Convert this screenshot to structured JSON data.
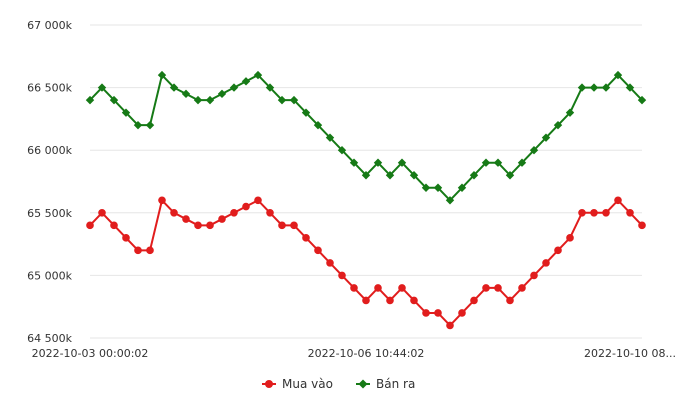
{
  "chart_data": {
    "type": "line",
    "title": "",
    "xlabel": "",
    "ylabel": "",
    "ylim": [
      64500,
      67000
    ],
    "yticks": [
      64500,
      65000,
      65500,
      66000,
      66500,
      67000
    ],
    "ytick_labels": [
      "64 500k",
      "65 000k",
      "65 500k",
      "66 000k",
      "66 500k",
      "67 000k"
    ],
    "xtick_labels": [
      {
        "index": 0,
        "label": "2022-10-03 00:00:02"
      },
      {
        "index": 23,
        "label": "2022-10-06 10:44:02"
      },
      {
        "index": 45,
        "label": "2022-10-10 08..."
      }
    ],
    "grid": true,
    "legend_position": "bottom-center",
    "series": [
      {
        "name": "Mua vào",
        "color": "#e11d1d",
        "marker": "circle",
        "values": [
          65400,
          65500,
          65400,
          65300,
          65200,
          65200,
          65600,
          65500,
          65450,
          65400,
          65400,
          65450,
          65500,
          65550,
          65600,
          65500,
          65400,
          65400,
          65300,
          65200,
          65100,
          65000,
          64900,
          64800,
          64900,
          64800,
          64900,
          64800,
          64700,
          64700,
          64600,
          64700,
          64800,
          64900,
          64900,
          64800,
          64900,
          65000,
          65100,
          65200,
          65300,
          65500,
          65500,
          65500,
          65600,
          65500,
          65400
        ]
      },
      {
        "name": "Bán ra",
        "color": "#167a16",
        "marker": "diamond",
        "values": [
          66400,
          66500,
          66400,
          66300,
          66200,
          66200,
          66600,
          66500,
          66450,
          66400,
          66400,
          66450,
          66500,
          66550,
          66600,
          66500,
          66400,
          66400,
          66300,
          66200,
          66100,
          66000,
          65900,
          65800,
          65900,
          65800,
          65900,
          65800,
          65700,
          65700,
          65600,
          65700,
          65800,
          65900,
          65900,
          65800,
          65900,
          66000,
          66100,
          66200,
          66300,
          66500,
          66500,
          66500,
          66600,
          66500,
          66400
        ]
      }
    ]
  }
}
